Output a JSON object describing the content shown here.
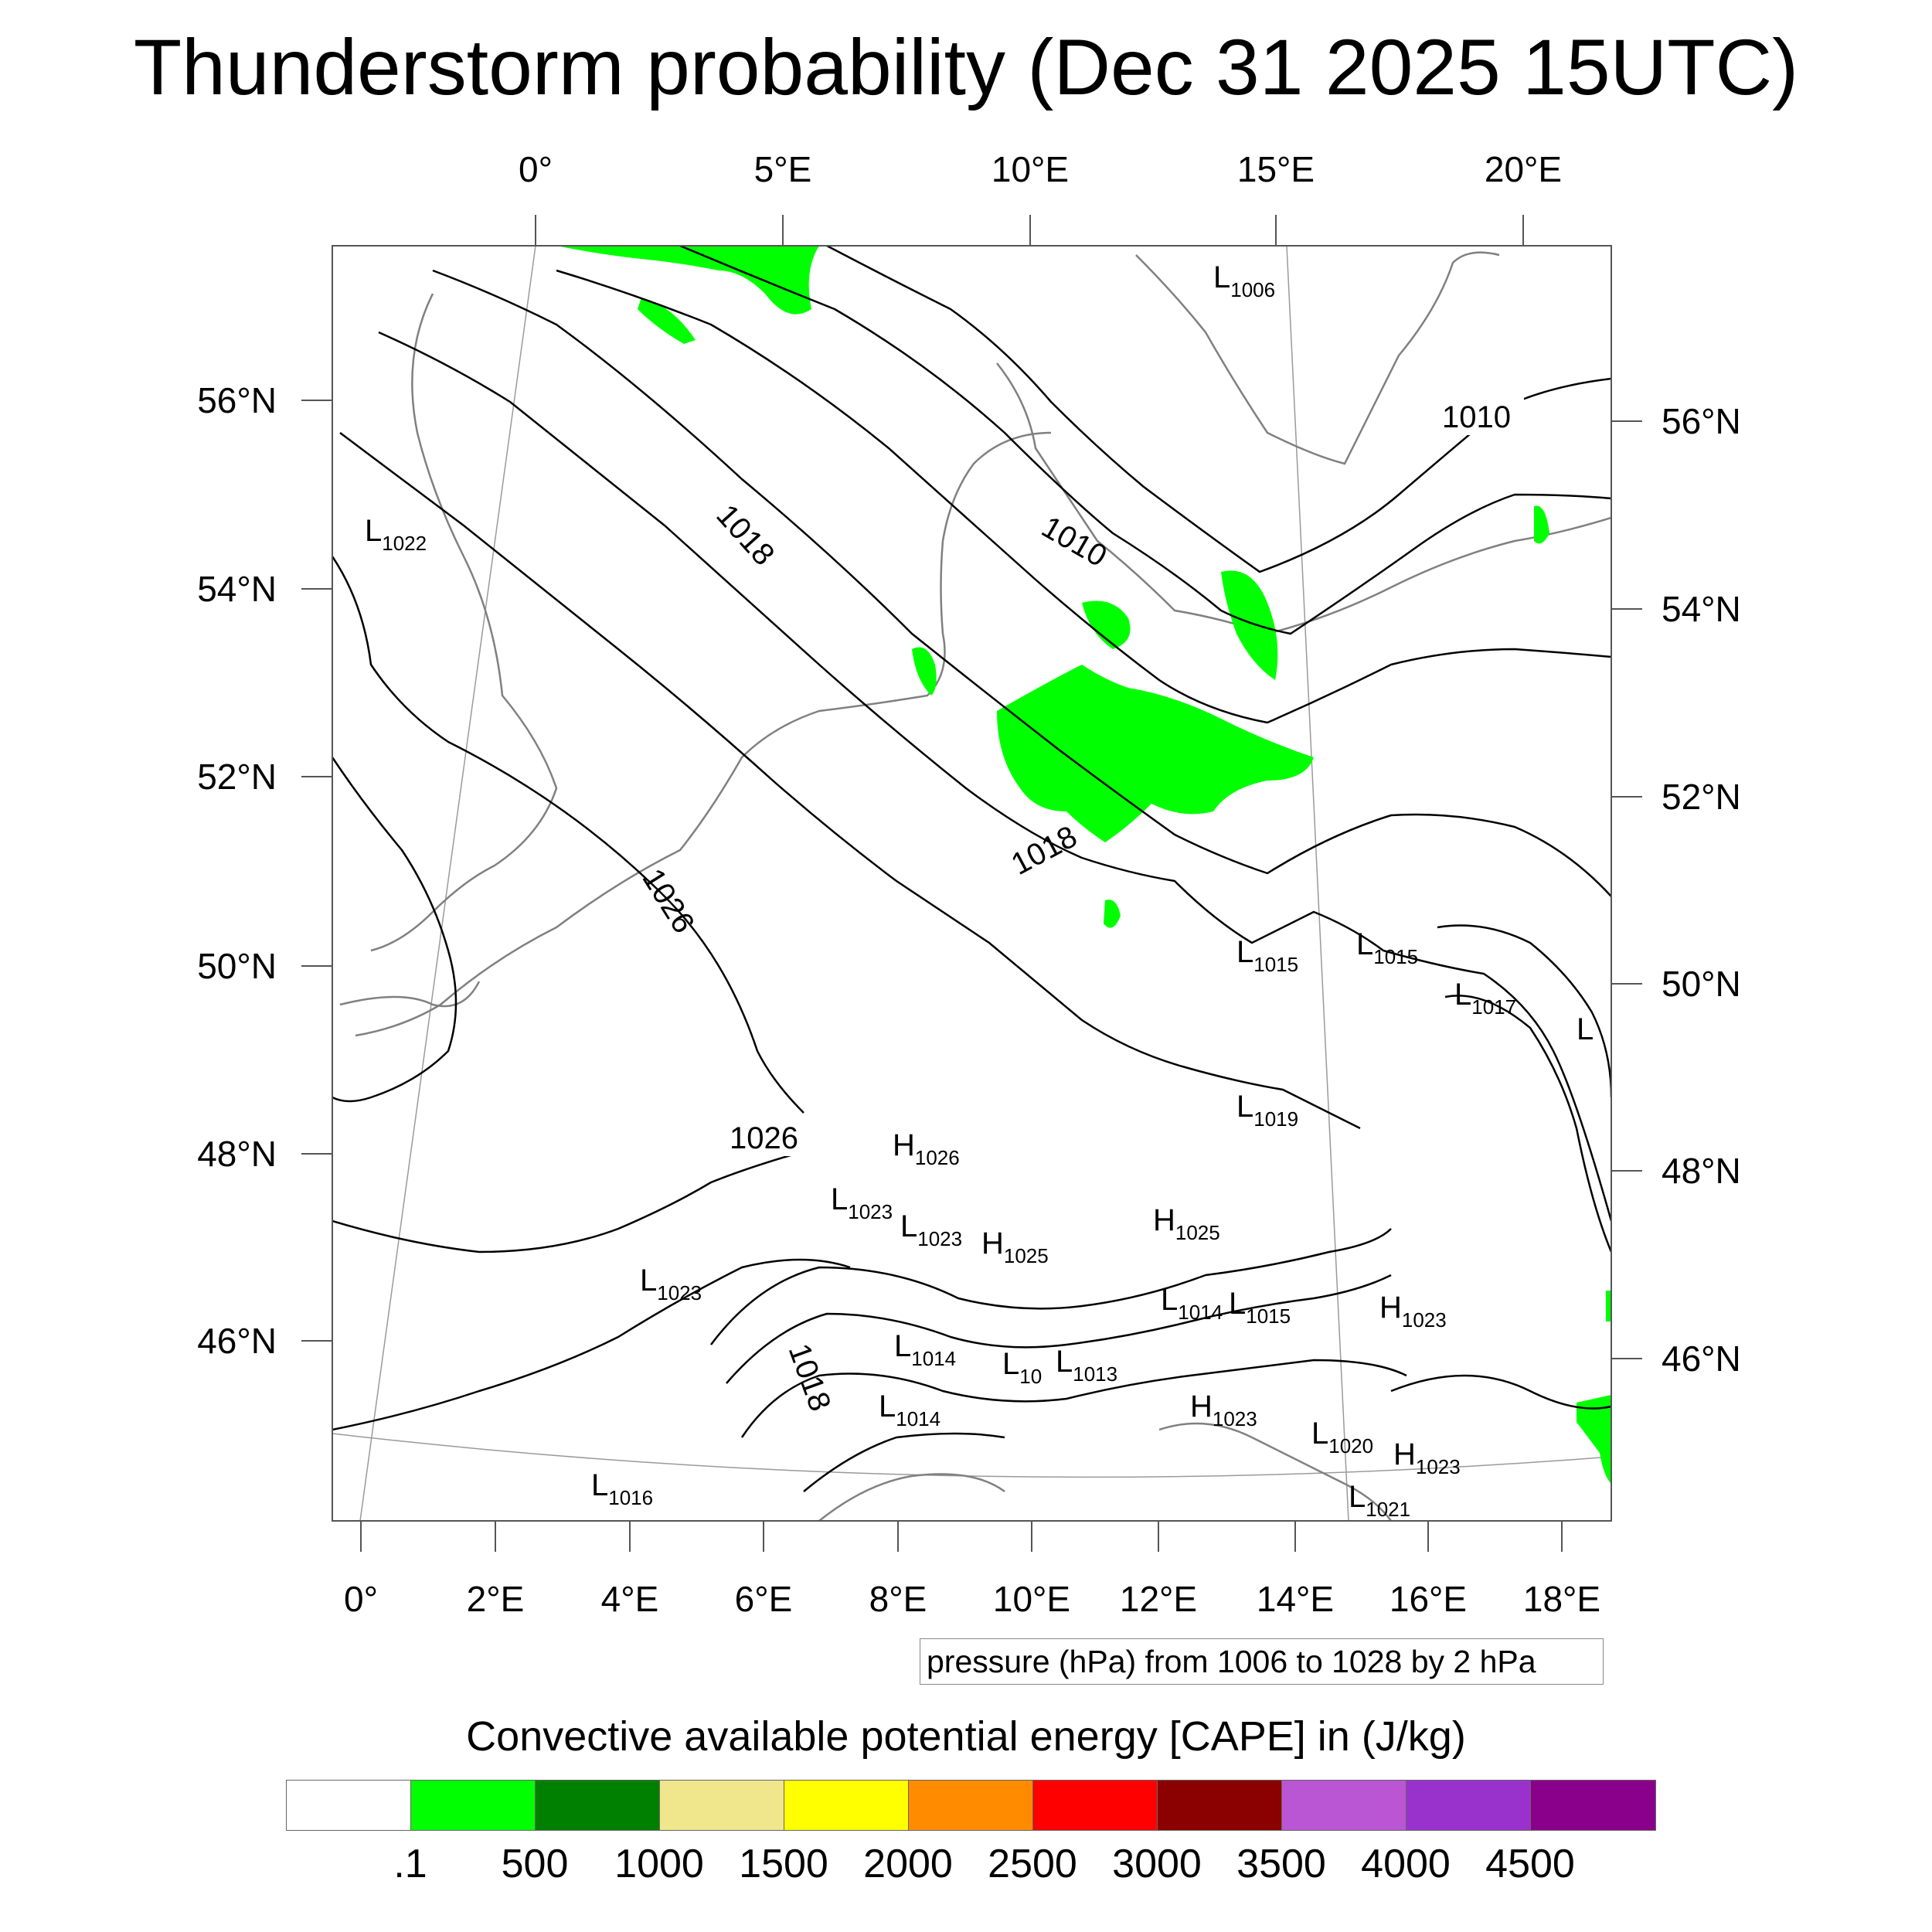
{
  "title": "Thunderstorm probability (Dec 31 2025 15UTC)",
  "map": {
    "top_lon_labels": [
      "0°",
      "5°E",
      "10°E",
      "15°E",
      "20°E"
    ],
    "bottom_lon_labels": [
      "0°",
      "2°E",
      "4°E",
      "6°E",
      "8°E",
      "10°E",
      "12°E",
      "14°E",
      "16°E",
      "18°E"
    ],
    "left_lat_labels": [
      "56°N",
      "54°N",
      "52°N",
      "50°N",
      "48°N",
      "46°N"
    ],
    "right_lat_labels": [
      "56°N",
      "54°N",
      "52°N",
      "50°N",
      "48°N",
      "46°N"
    ],
    "contour_labels": [
      "1018",
      "1010",
      "1010",
      "1018",
      "1026",
      "1026",
      "1018"
    ],
    "pressure_centers": [
      {
        "type": "L",
        "value": "1006"
      },
      {
        "type": "L",
        "value": "1022"
      },
      {
        "type": "L",
        "value": "1015"
      },
      {
        "type": "L",
        "value": "1015"
      },
      {
        "type": "L",
        "value": "1017"
      },
      {
        "type": "L",
        "value": ""
      },
      {
        "type": "L",
        "value": "1019"
      },
      {
        "type": "H",
        "value": "1026"
      },
      {
        "type": "L",
        "value": "1023"
      },
      {
        "type": "L",
        "value": "1023"
      },
      {
        "type": "H",
        "value": "1025"
      },
      {
        "type": "H",
        "value": "1025"
      },
      {
        "type": "L",
        "value": "1023"
      },
      {
        "type": "L",
        "value": "1014"
      },
      {
        "type": "L",
        "value": "1015"
      },
      {
        "type": "H",
        "value": "1023"
      },
      {
        "type": "L",
        "value": "1014"
      },
      {
        "type": "L",
        "value": "10"
      },
      {
        "type": "L",
        "value": "1013"
      },
      {
        "type": "L",
        "value": "1014"
      },
      {
        "type": "H",
        "value": "1023"
      },
      {
        "type": "L",
        "value": "1020"
      },
      {
        "type": "H",
        "value": "1023"
      },
      {
        "type": "L",
        "value": "1016"
      },
      {
        "type": "L",
        "value": "1021"
      }
    ],
    "colors": {
      "isobar": "#000000",
      "coastline": "#808080",
      "cape_shading": "#00ff00"
    }
  },
  "info_box": "pressure (hPa) from 1006 to 1028 by 2 hPa",
  "legend": {
    "title": "Convective available potential energy [CAPE] in (J/kg)",
    "colors": [
      "#ffffff",
      "#00ff00",
      "#008000",
      "#f0e68c",
      "#ffff00",
      "#ff8c00",
      "#ff0000",
      "#8b0000",
      "#ba55d3",
      "#9932cc",
      "#8b008b"
    ],
    "labels": [
      ".1",
      "500",
      "1000",
      "1500",
      "2000",
      "2500",
      "3000",
      "3500",
      "4000",
      "4500"
    ]
  }
}
